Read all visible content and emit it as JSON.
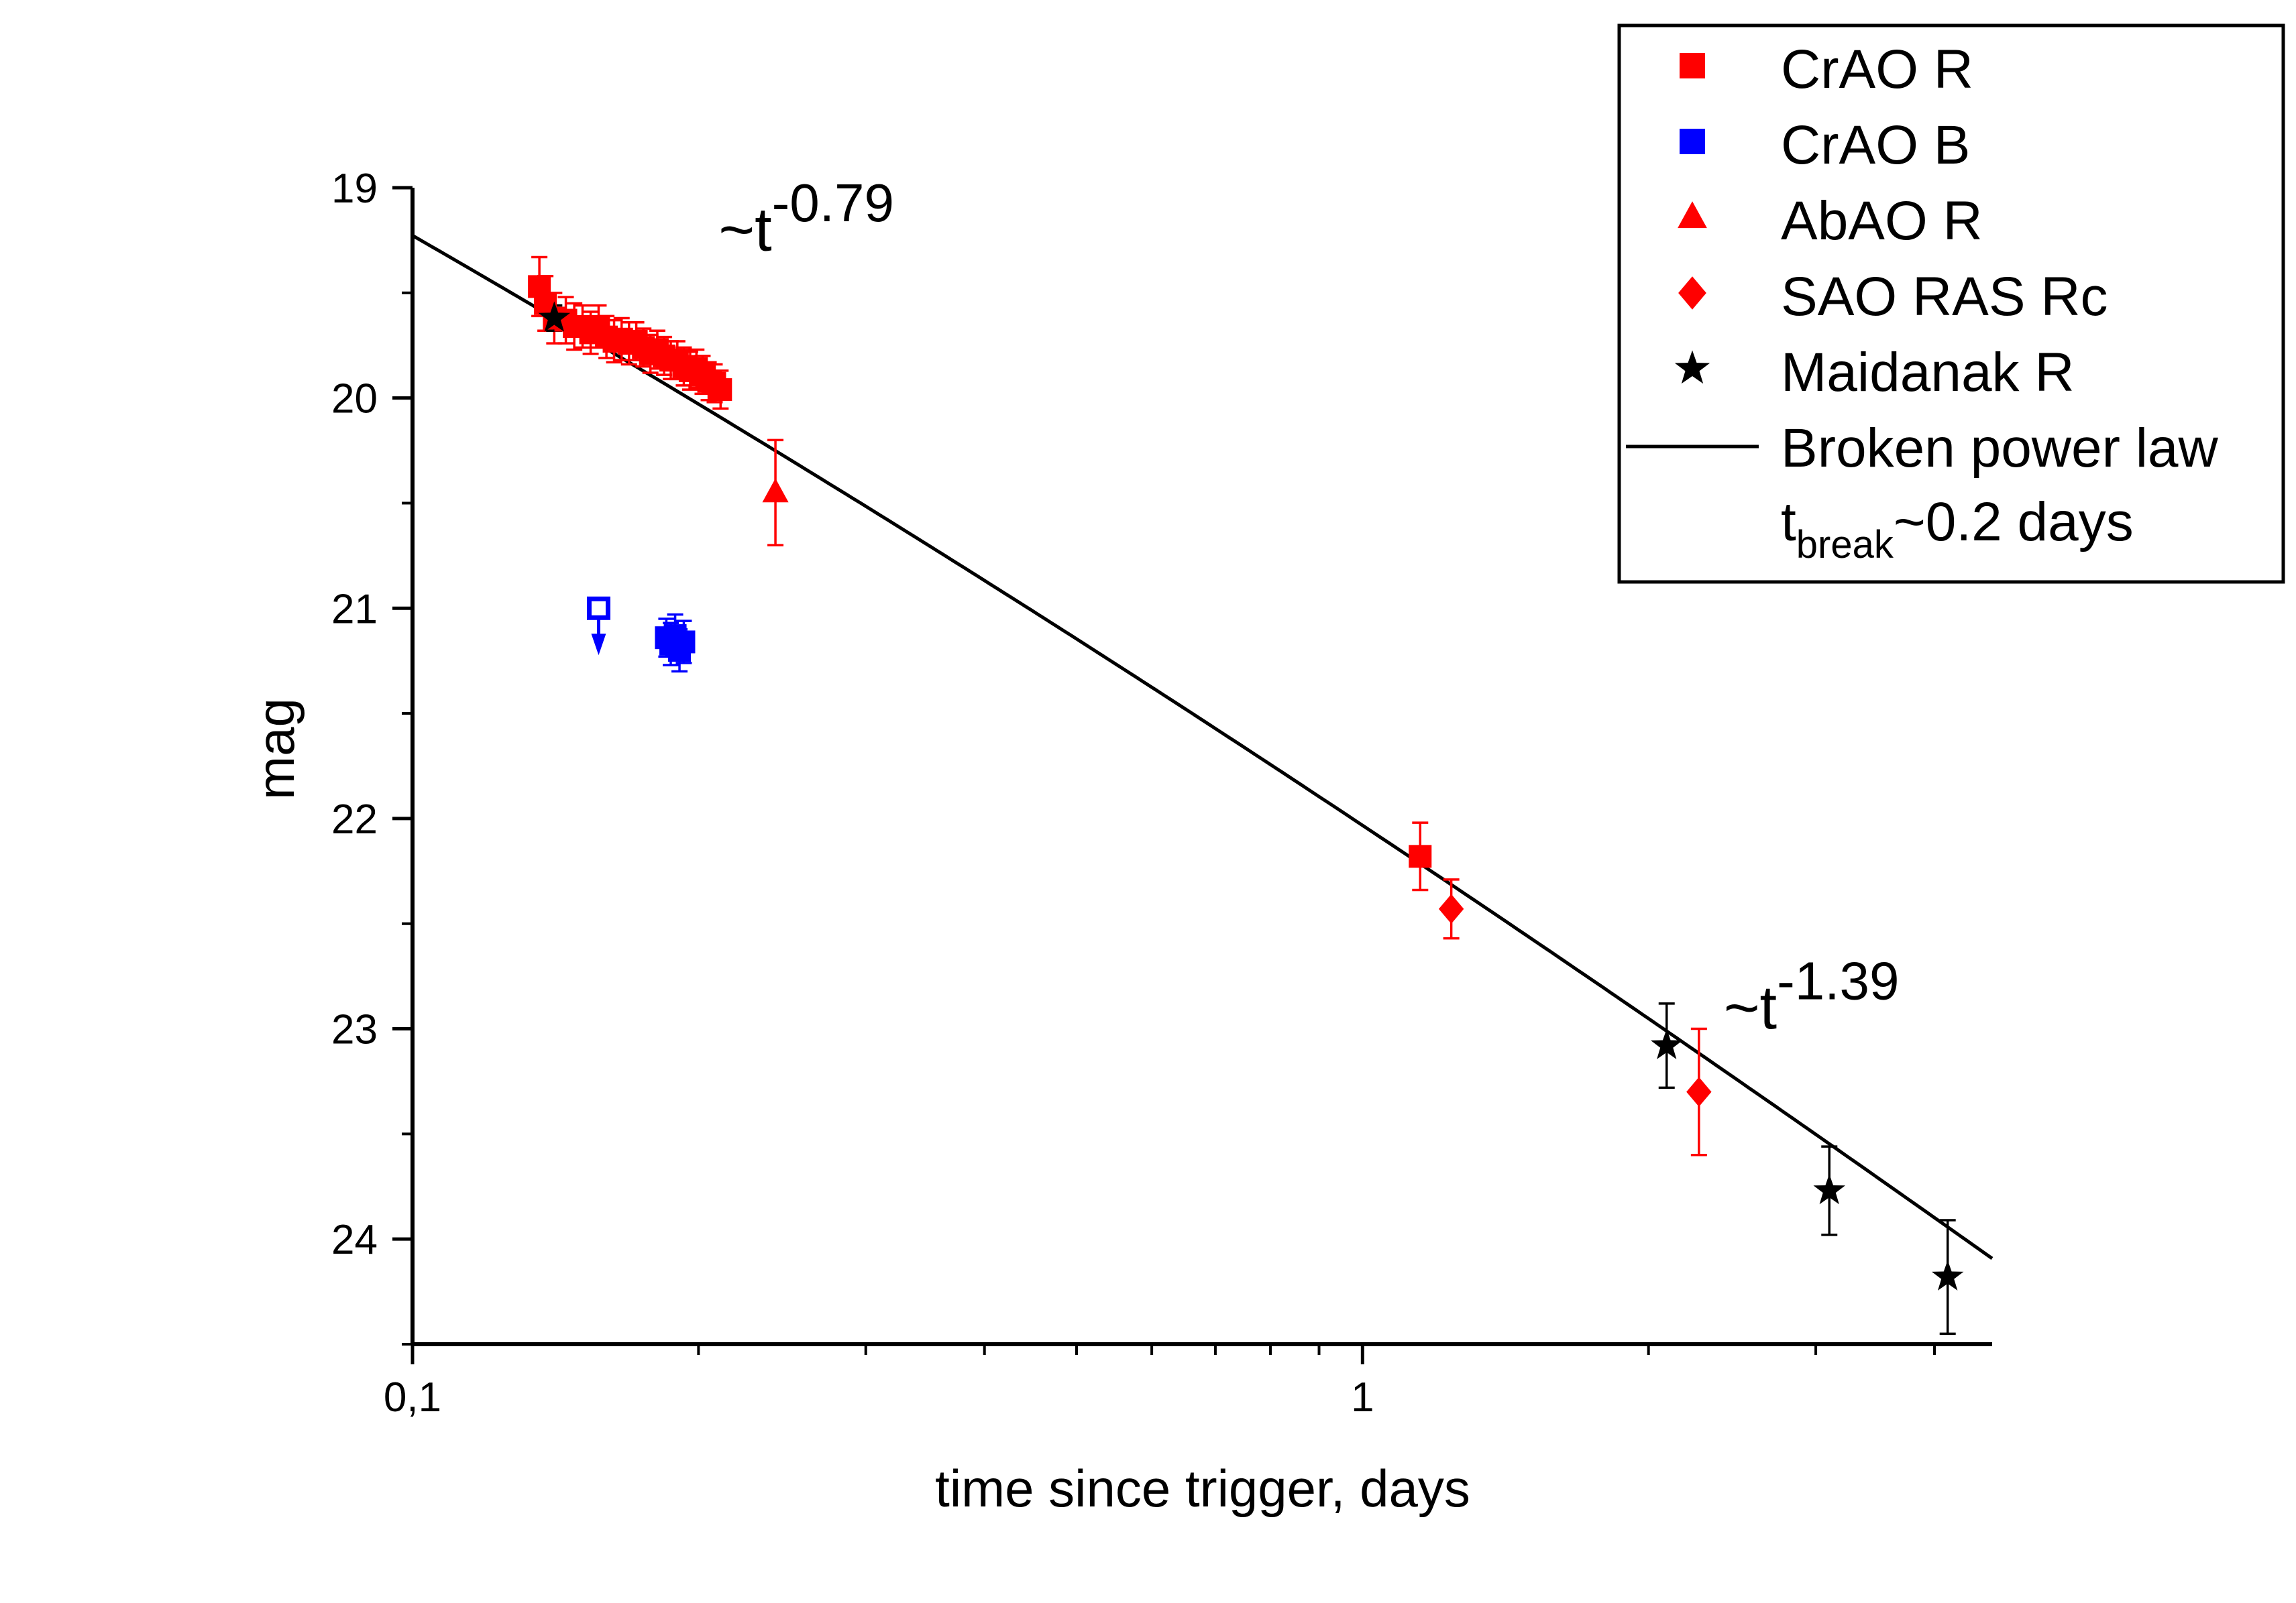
{
  "chart_data": {
    "type": "scatter",
    "title": "",
    "xlabel": "time since trigger, days",
    "ylabel": "mag",
    "x_scale": "log",
    "xlim": [
      0.1,
      4.6
    ],
    "ylim": [
      24.5,
      19.0
    ],
    "y_inverted": true,
    "x_ticks": [
      {
        "value": 0.1,
        "label": "0,1"
      },
      {
        "value": 1,
        "label": "1"
      }
    ],
    "y_ticks": [
      19,
      20,
      21,
      22,
      23,
      24
    ],
    "grid": false,
    "legend_position": "top-right",
    "series": [
      {
        "name": "CrAO R",
        "marker": "square",
        "color": "#ff0000",
        "points": [
          {
            "x": 0.136,
            "y": 19.47,
            "err": 0.14
          },
          {
            "x": 0.138,
            "y": 19.55,
            "err": 0.13
          },
          {
            "x": 0.141,
            "y": 19.62,
            "err": 0.12
          },
          {
            "x": 0.145,
            "y": 19.63,
            "err": 0.11
          },
          {
            "x": 0.148,
            "y": 19.66,
            "err": 0.11
          },
          {
            "x": 0.151,
            "y": 19.66,
            "err": 0.1
          },
          {
            "x": 0.154,
            "y": 19.69,
            "err": 0.1
          },
          {
            "x": 0.157,
            "y": 19.66,
            "err": 0.1
          },
          {
            "x": 0.16,
            "y": 19.71,
            "err": 0.1
          },
          {
            "x": 0.163,
            "y": 19.73,
            "err": 0.1
          },
          {
            "x": 0.166,
            "y": 19.72,
            "err": 0.1
          },
          {
            "x": 0.169,
            "y": 19.74,
            "err": 0.1
          },
          {
            "x": 0.172,
            "y": 19.73,
            "err": 0.09
          },
          {
            "x": 0.175,
            "y": 19.76,
            "err": 0.09
          },
          {
            "x": 0.178,
            "y": 19.79,
            "err": 0.09
          },
          {
            "x": 0.181,
            "y": 19.77,
            "err": 0.09
          },
          {
            "x": 0.184,
            "y": 19.8,
            "err": 0.09
          },
          {
            "x": 0.187,
            "y": 19.82,
            "err": 0.09
          },
          {
            "x": 0.19,
            "y": 19.82,
            "err": 0.09
          },
          {
            "x": 0.193,
            "y": 19.85,
            "err": 0.09
          },
          {
            "x": 0.196,
            "y": 19.87,
            "err": 0.09
          },
          {
            "x": 0.199,
            "y": 19.86,
            "err": 0.09
          },
          {
            "x": 0.202,
            "y": 19.89,
            "err": 0.09
          },
          {
            "x": 0.205,
            "y": 19.92,
            "err": 0.09
          },
          {
            "x": 0.208,
            "y": 19.93,
            "err": 0.09
          },
          {
            "x": 0.211,
            "y": 19.96,
            "err": 0.09
          },
          {
            "x": 1.15,
            "y": 22.18,
            "err": 0.16
          }
        ]
      },
      {
        "name": "CrAO B",
        "marker": "square",
        "color": "#0000ff",
        "upper_limits": [
          {
            "x": 0.157,
            "y": 21.0
          }
        ],
        "points": [
          {
            "x": 0.185,
            "y": 21.14,
            "err": 0.09
          },
          {
            "x": 0.187,
            "y": 21.17,
            "err": 0.1
          },
          {
            "x": 0.189,
            "y": 21.13,
            "err": 0.1
          },
          {
            "x": 0.191,
            "y": 21.2,
            "err": 0.1
          },
          {
            "x": 0.193,
            "y": 21.16,
            "err": 0.1
          }
        ]
      },
      {
        "name": "AbAO R",
        "marker": "triangle",
        "color": "#ff0000",
        "points": [
          {
            "x": 0.241,
            "y": 20.45,
            "err": 0.25
          }
        ]
      },
      {
        "name": "SAO RAS Rc",
        "marker": "diamond",
        "color": "#ff0000",
        "points": [
          {
            "x": 1.24,
            "y": 22.43,
            "err": 0.14
          },
          {
            "x": 2.26,
            "y": 23.3,
            "err": 0.3
          }
        ]
      },
      {
        "name": "Maidanak R",
        "marker": "star",
        "color": "#000000",
        "points": [
          {
            "x": 0.141,
            "y": 19.62,
            "err": 0.06
          },
          {
            "x": 2.09,
            "y": 23.08,
            "err": 0.2
          },
          {
            "x": 3.1,
            "y": 23.77,
            "err": 0.21
          },
          {
            "x": 4.13,
            "y": 24.18,
            "err": 0.27
          }
        ]
      },
      {
        "name": "Broken power law",
        "type": "line",
        "color": "#000000",
        "model": {
          "t_break": 0.2,
          "alpha1": 0.79,
          "alpha2": 1.39
        }
      }
    ],
    "legend_extra": {
      "base": "t",
      "sub": "break",
      "rest": "~0.2 days"
    },
    "annotations": [
      {
        "base": "~t",
        "exp": "-0.79",
        "x": 0.21,
        "y": 19.3
      },
      {
        "base": "~t",
        "exp": "-1.39",
        "x": 2.4,
        "y": 23.0
      }
    ]
  }
}
